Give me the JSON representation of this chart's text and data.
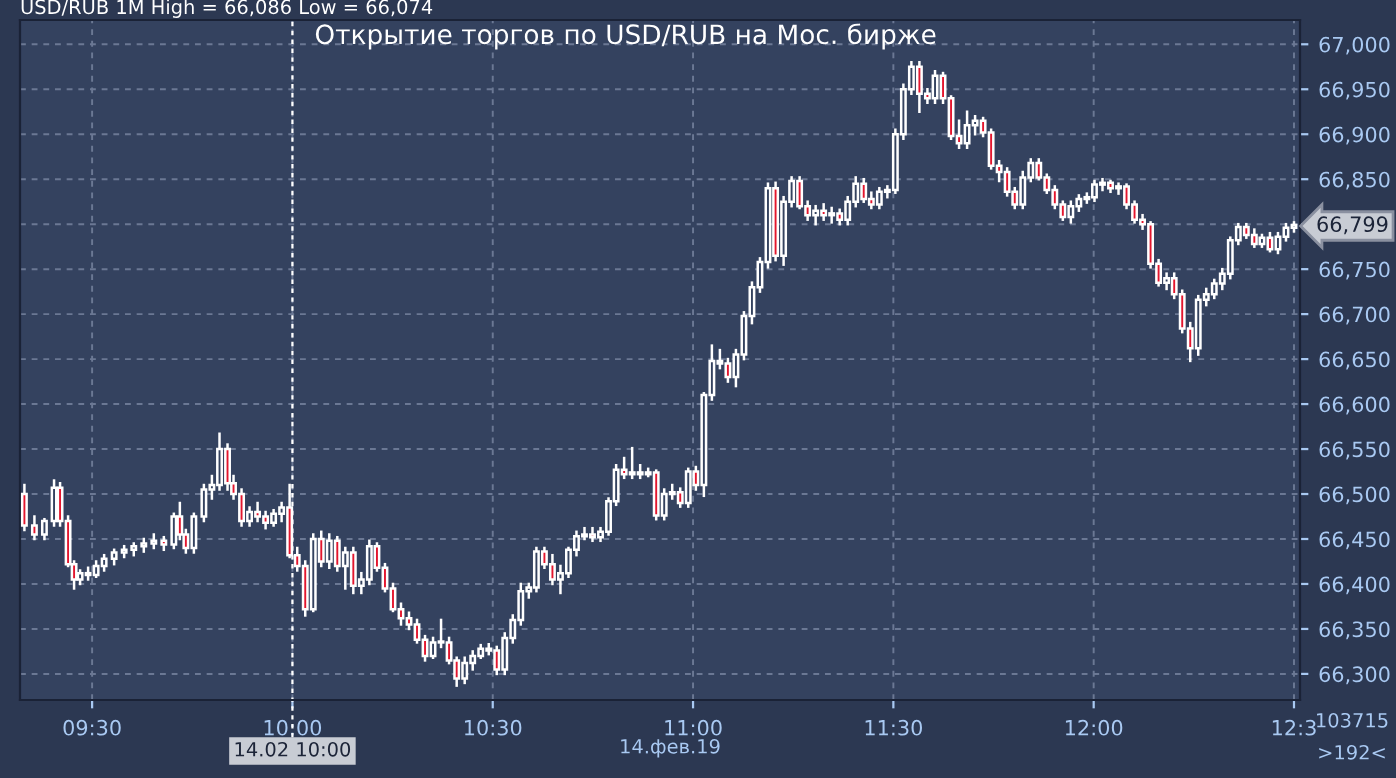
{
  "chart_data": {
    "type": "candlestick",
    "title": "Открытие торгов по USD/RUB на Мос. бирже",
    "subtitle": "USD/RUB 1M High = 66,086 Low = 66,074",
    "x": [
      9.331,
      9.356,
      9.381,
      9.405,
      9.42,
      9.44,
      9.455,
      9.47,
      9.49,
      9.51,
      9.53,
      9.555,
      9.58,
      9.604,
      9.629,
      9.654,
      9.679,
      9.704,
      9.719,
      9.734,
      9.754,
      9.779,
      9.799,
      9.818,
      9.838,
      9.853,
      9.873,
      9.893,
      9.913,
      9.933,
      9.953,
      9.973,
      9.993,
      10.012,
      10.032,
      10.052,
      10.072,
      10.092,
      10.112,
      10.132,
      10.152,
      10.172,
      10.192,
      10.211,
      10.231,
      10.251,
      10.271,
      10.291,
      10.311,
      10.331,
      10.351,
      10.371,
      10.391,
      10.41,
      10.43,
      10.45,
      10.47,
      10.49,
      10.51,
      10.53,
      10.55,
      10.57,
      10.59,
      10.609,
      10.629,
      10.649,
      10.669,
      10.689,
      10.709,
      10.729,
      10.749,
      10.769,
      10.789,
      10.808,
      10.828,
      10.848,
      10.868,
      10.888,
      10.908,
      10.928,
      10.948,
      10.968,
      10.988,
      11.007,
      11.027,
      11.047,
      11.067,
      11.087,
      11.107,
      11.127,
      11.147,
      11.167,
      11.187,
      11.206,
      11.226,
      11.246,
      11.266,
      11.286,
      11.306,
      11.326,
      11.346,
      11.366,
      11.386,
      11.406,
      11.426,
      11.445,
      11.465,
      11.485,
      11.505,
      11.525,
      11.545,
      11.565,
      11.585,
      11.604,
      11.624,
      11.644,
      11.664,
      11.684,
      11.704,
      11.724,
      11.744,
      11.764,
      11.784,
      11.803,
      11.823,
      11.843,
      11.863,
      11.883,
      11.903,
      11.923,
      11.943,
      11.963,
      11.983,
      12.002,
      12.022,
      12.042,
      12.062,
      12.082,
      12.102,
      12.122,
      12.142,
      12.162,
      12.182,
      12.201,
      12.221,
      12.241,
      12.261,
      12.281,
      12.301,
      12.321,
      12.341,
      12.361,
      12.381,
      12.401,
      12.42,
      12.44,
      12.46,
      12.48,
      12.5
    ],
    "ohlc": [
      [
        66500,
        66510,
        66460,
        66465
      ],
      [
        66465,
        66475,
        66450,
        66455
      ],
      [
        66455,
        66472,
        66450,
        66470
      ],
      [
        66470,
        66515,
        66465,
        66507
      ],
      [
        66507,
        66512,
        66465,
        66470
      ],
      [
        66470,
        66475,
        66420,
        66422
      ],
      [
        66422,
        66425,
        66395,
        66405
      ],
      [
        66405,
        66415,
        66400,
        66412
      ],
      [
        66412,
        66418,
        66405,
        66410
      ],
      [
        66410,
        66425,
        66408,
        66420
      ],
      [
        66420,
        66432,
        66415,
        66428
      ],
      [
        66428,
        66438,
        66422,
        66435
      ],
      [
        66435,
        66442,
        66430,
        66438
      ],
      [
        66438,
        66445,
        66432,
        66442
      ],
      [
        66442,
        66450,
        66436,
        66445
      ],
      [
        66445,
        66455,
        66440,
        66448
      ],
      [
        66448,
        66452,
        66438,
        66444
      ],
      [
        66444,
        66478,
        66440,
        66475
      ],
      [
        66475,
        66490,
        66450,
        66455
      ],
      [
        66455,
        66460,
        66435,
        66440
      ],
      [
        66440,
        66478,
        66435,
        66475
      ],
      [
        66475,
        66510,
        66470,
        66505
      ],
      [
        66505,
        66520,
        66495,
        66510
      ],
      [
        66510,
        66567,
        66505,
        66550
      ],
      [
        66550,
        66555,
        66505,
        66512
      ],
      [
        66512,
        66520,
        66495,
        66500
      ],
      [
        66500,
        66505,
        66465,
        66470
      ],
      [
        66470,
        66485,
        66465,
        66480
      ],
      [
        66480,
        66490,
        66470,
        66475
      ],
      [
        66475,
        66480,
        66462,
        66468
      ],
      [
        66468,
        66482,
        66465,
        66478
      ],
      [
        66478,
        66490,
        66470,
        66485
      ],
      [
        66485,
        66510,
        66430,
        66432
      ],
      [
        66432,
        66440,
        66415,
        66420
      ],
      [
        66420,
        66425,
        66365,
        66372
      ],
      [
        66372,
        66455,
        66370,
        66450
      ],
      [
        66450,
        66458,
        66420,
        66425
      ],
      [
        66425,
        66455,
        66418,
        66448
      ],
      [
        66448,
        66452,
        66415,
        66420
      ],
      [
        66420,
        66440,
        66395,
        66435
      ],
      [
        66435,
        66440,
        66390,
        66398
      ],
      [
        66398,
        66412,
        66390,
        66405
      ],
      [
        66405,
        66448,
        66400,
        66442
      ],
      [
        66442,
        66445,
        66415,
        66418
      ],
      [
        66418,
        66422,
        66392,
        66395
      ],
      [
        66395,
        66400,
        66370,
        66372
      ],
      [
        66372,
        66378,
        66355,
        66362
      ],
      [
        66362,
        66368,
        66350,
        66355
      ],
      [
        66355,
        66360,
        66335,
        66338
      ],
      [
        66338,
        66342,
        66315,
        66320
      ],
      [
        66320,
        66340,
        66318,
        66335
      ],
      [
        66335,
        66360,
        66330,
        66336
      ],
      [
        66335,
        66340,
        66312,
        66315
      ],
      [
        66315,
        66318,
        66287,
        66295
      ],
      [
        66295,
        66318,
        66290,
        66312
      ],
      [
        66312,
        66325,
        66305,
        66320
      ],
      [
        66320,
        66332,
        66318,
        66328
      ],
      [
        66328,
        66333,
        66322,
        66326
      ],
      [
        66326,
        66330,
        66300,
        66305
      ],
      [
        66305,
        66345,
        66300,
        66340
      ],
      [
        66340,
        66365,
        66335,
        66360
      ],
      [
        66360,
        66400,
        66355,
        66392
      ],
      [
        66392,
        66400,
        66385,
        66396
      ],
      [
        66396,
        66440,
        66392,
        66436
      ],
      [
        66436,
        66440,
        66418,
        66422
      ],
      [
        66422,
        66432,
        66400,
        66405
      ],
      [
        66405,
        66420,
        66390,
        66412
      ],
      [
        66412,
        66440,
        66408,
        66438
      ],
      [
        66438,
        66458,
        66432,
        66453
      ],
      [
        66453,
        66462,
        66450,
        66455
      ],
      [
        66455,
        66462,
        66448,
        66452
      ],
      [
        66452,
        66462,
        66448,
        66458
      ],
      [
        66458,
        66495,
        66455,
        66492
      ],
      [
        66492,
        66532,
        66488,
        66527
      ],
      [
        66527,
        66540,
        66518,
        66522
      ],
      [
        66522,
        66551,
        66518,
        66524
      ],
      [
        66524,
        66532,
        66518,
        66522
      ],
      [
        66522,
        66528,
        66520,
        66524
      ],
      [
        66524,
        66526,
        66472,
        66476
      ],
      [
        66476,
        66505,
        66472,
        66500
      ],
      [
        66500,
        66510,
        66495,
        66502
      ],
      [
        66502,
        66506,
        66486,
        66490
      ],
      [
        66490,
        66528,
        66486,
        66525
      ],
      [
        66525,
        66530,
        66505,
        66510
      ],
      [
        66510,
        66612,
        66498,
        66610
      ],
      [
        66610,
        66665,
        66605,
        66648
      ],
      [
        66648,
        66660,
        66640,
        66645
      ],
      [
        66645,
        66650,
        66625,
        66630
      ],
      [
        66630,
        66660,
        66620,
        66655
      ],
      [
        66655,
        66702,
        66650,
        66698
      ],
      [
        66698,
        66735,
        66690,
        66730
      ],
      [
        66730,
        66762,
        66725,
        66758
      ],
      [
        66758,
        66845,
        66752,
        66840
      ],
      [
        66840,
        66846,
        66760,
        66765
      ],
      [
        66765,
        66830,
        66755,
        66825
      ],
      [
        66825,
        66852,
        66820,
        66848
      ],
      [
        66848,
        66852,
        66818,
        66820
      ],
      [
        66820,
        66825,
        66805,
        66810
      ],
      [
        66810,
        66820,
        66800,
        66815
      ],
      [
        66815,
        66822,
        66805,
        66810
      ],
      [
        66810,
        66818,
        66802,
        66812
      ],
      [
        66812,
        66816,
        66800,
        66805
      ],
      [
        66805,
        66830,
        66800,
        66825
      ],
      [
        66825,
        66852,
        66820,
        66845
      ],
      [
        66845,
        66850,
        66825,
        66828
      ],
      [
        66828,
        66835,
        66818,
        66822
      ],
      [
        66822,
        66840,
        66818,
        66836
      ],
      [
        66836,
        66842,
        66830,
        66838
      ],
      [
        66838,
        66905,
        66835,
        66900
      ],
      [
        66900,
        66955,
        66895,
        66950
      ],
      [
        66950,
        66980,
        66945,
        66975
      ],
      [
        66975,
        66980,
        66925,
        66945
      ],
      [
        66945,
        66950,
        66935,
        66940
      ],
      [
        66940,
        66970,
        66935,
        66965
      ],
      [
        66965,
        66968,
        66935,
        66940
      ],
      [
        66940,
        66942,
        66895,
        66898
      ],
      [
        66898,
        66915,
        66885,
        66890
      ],
      [
        66890,
        66925,
        66885,
        66910
      ],
      [
        66910,
        66920,
        66900,
        66915
      ],
      [
        66915,
        66918,
        66898,
        66902
      ],
      [
        66902,
        66905,
        66862,
        66865
      ],
      [
        66865,
        66870,
        66848,
        66858
      ],
      [
        66858,
        66862,
        66832,
        66836
      ],
      [
        66836,
        66840,
        66818,
        66822
      ],
      [
        66822,
        66858,
        66818,
        66852
      ],
      [
        66852,
        66872,
        66848,
        66868
      ],
      [
        66868,
        66872,
        66850,
        66852
      ],
      [
        66852,
        66855,
        66835,
        66838
      ],
      [
        66838,
        66842,
        66818,
        66822
      ],
      [
        66822,
        66825,
        66805,
        66808
      ],
      [
        66808,
        66825,
        66802,
        66820
      ],
      [
        66820,
        66832,
        66815,
        66828
      ],
      [
        66828,
        66834,
        66824,
        66830
      ],
      [
        66830,
        66848,
        66826,
        66844
      ],
      [
        66844,
        66850,
        66838,
        66846
      ],
      [
        66846,
        66848,
        66836,
        66840
      ],
      [
        66840,
        66845,
        66834,
        66842
      ],
      [
        66842,
        66844,
        66818,
        66822
      ],
      [
        66822,
        66825,
        66802,
        66805
      ],
      [
        66805,
        66810,
        66795,
        66800
      ],
      [
        66800,
        66802,
        66752,
        66756
      ],
      [
        66756,
        66760,
        66732,
        66735
      ],
      [
        66735,
        66745,
        66728,
        66740
      ],
      [
        66740,
        66745,
        66718,
        66722
      ],
      [
        66722,
        66726,
        66680,
        66684
      ],
      [
        66684,
        66690,
        66648,
        66662
      ],
      [
        66662,
        66720,
        66655,
        66716
      ],
      [
        66716,
        66728,
        66710,
        66722
      ],
      [
        66722,
        66738,
        66718,
        66734
      ],
      [
        66734,
        66750,
        66728,
        66745
      ],
      [
        66745,
        66785,
        66740,
        66782
      ],
      [
        66782,
        66800,
        66778,
        66797
      ],
      [
        66797,
        66800,
        66785,
        66788
      ],
      [
        66788,
        66794,
        66775,
        66778
      ],
      [
        66778,
        66788,
        66775,
        66785
      ],
      [
        66785,
        66790,
        66770,
        66772
      ],
      [
        66772,
        66790,
        66768,
        66786
      ],
      [
        66786,
        66800,
        66782,
        66796
      ],
      [
        66796,
        66802,
        66792,
        66799
      ]
    ],
    "xlim": [
      9.32,
      12.515
    ],
    "xticks": [
      {
        "value": 9.5,
        "label": "09:30"
      },
      {
        "value": 10,
        "label": "10:00"
      },
      {
        "value": 10.5,
        "label": "10:30"
      },
      {
        "value": 11,
        "label": "11:00"
      },
      {
        "value": 11.5,
        "label": "11:30"
      },
      {
        "value": 12,
        "label": "12:00"
      },
      {
        "value": 12.5,
        "label": "12:3"
      }
    ],
    "ylim": [
      66271,
      67027
    ],
    "yticks": [
      {
        "value": 66300,
        "label": "66,300"
      },
      {
        "value": 66350,
        "label": "66,350"
      },
      {
        "value": 66400,
        "label": "66,400"
      },
      {
        "value": 66450,
        "label": "66,450"
      },
      {
        "value": 66500,
        "label": "66,500"
      },
      {
        "value": 66550,
        "label": "66,550"
      },
      {
        "value": 66600,
        "label": "66,600"
      },
      {
        "value": 66650,
        "label": "66,650"
      },
      {
        "value": 66700,
        "label": "66,700"
      },
      {
        "value": 66750,
        "label": "66,750"
      },
      {
        "value": 66800,
        "label": null
      },
      {
        "value": 66850,
        "label": "66,850"
      },
      {
        "value": 66900,
        "label": "66,900"
      },
      {
        "value": 66950,
        "label": "66,950"
      },
      {
        "value": 67000,
        "label": "67,000"
      }
    ],
    "ref_lines": [
      {
        "axis": "x",
        "value": 10,
        "label": "14.02 10:00",
        "color": "#ffffff",
        "line_style": "dashed"
      }
    ],
    "annotations": [
      "14.фев.19",
      "103715",
      ">192<",
      "66,799"
    ],
    "grid": true,
    "legend": false
  }
}
